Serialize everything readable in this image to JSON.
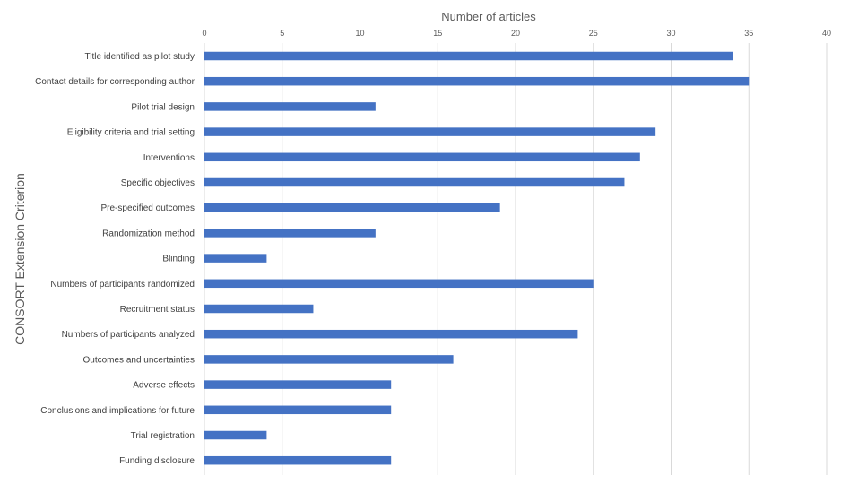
{
  "chart_data": {
    "type": "bar",
    "orientation": "horizontal",
    "title": "",
    "xlabel": "Number of articles",
    "ylabel": "CONSORT Extension Criterion",
    "xlim": [
      0,
      40
    ],
    "xticks": [
      0,
      5,
      10,
      15,
      20,
      25,
      30,
      35,
      40
    ],
    "x_axis_position": "top",
    "grid": true,
    "bar_color": "#4472c4",
    "categories": [
      "Title identified as pilot study",
      "Contact details for corresponding author",
      "Pilot trial design",
      "Eligibility criteria and trial setting",
      "Interventions",
      "Specific objectives",
      "Pre-specified outcomes",
      "Randomization method",
      "Blinding",
      "Numbers of participants randomized",
      "Recruitment status",
      "Numbers of participants analyzed",
      "Outcomes and uncertainties",
      "Adverse effects",
      "Conclusions and implications for future",
      "Trial registration",
      "Funding disclosure"
    ],
    "values": [
      34,
      35,
      11,
      29,
      28,
      27,
      19,
      11,
      4,
      25,
      7,
      24,
      16,
      12,
      12,
      4,
      12
    ]
  }
}
